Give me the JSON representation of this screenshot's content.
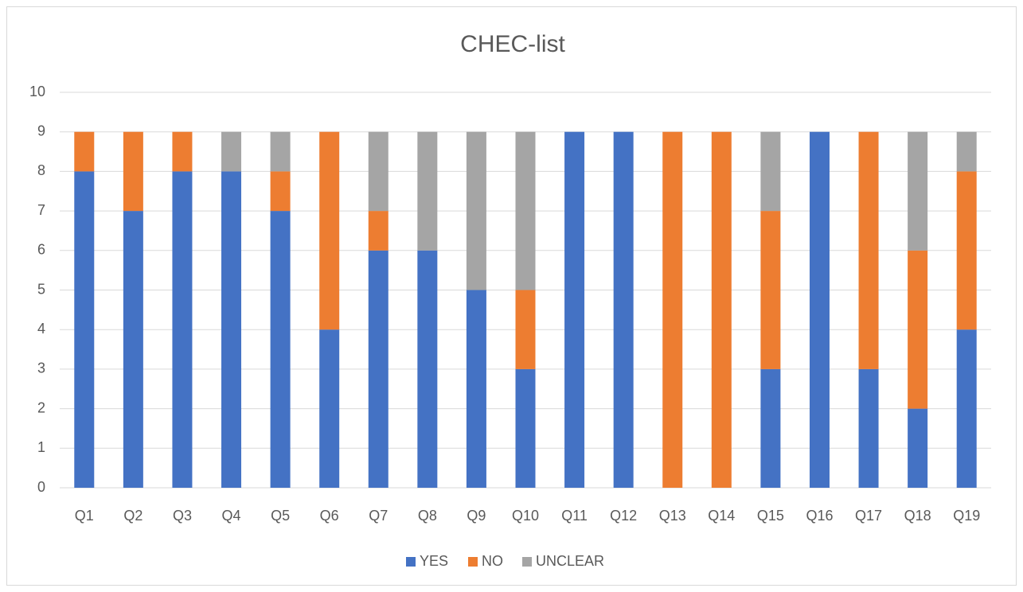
{
  "chart_data": {
    "type": "stacked_bar",
    "title": "CHEC-list",
    "categories": [
      "Q1",
      "Q2",
      "Q3",
      "Q4",
      "Q5",
      "Q6",
      "Q7",
      "Q8",
      "Q9",
      "Q10",
      "Q11",
      "Q12",
      "Q13",
      "Q14",
      "Q15",
      "Q16",
      "Q17",
      "Q18",
      "Q19"
    ],
    "series": [
      {
        "name": "YES",
        "color": "#4472c4",
        "values": [
          8,
          7,
          8,
          8,
          7,
          4,
          6,
          6,
          5,
          3,
          9,
          9,
          0,
          0,
          3,
          9,
          3,
          2,
          4
        ]
      },
      {
        "name": "NO",
        "color": "#ed7d31",
        "values": [
          1,
          2,
          1,
          0,
          1,
          5,
          1,
          0,
          0,
          2,
          0,
          0,
          9,
          9,
          4,
          0,
          6,
          4,
          4
        ]
      },
      {
        "name": "UNCLEAR",
        "color": "#a5a5a5",
        "values": [
          0,
          0,
          0,
          1,
          1,
          0,
          2,
          3,
          4,
          4,
          0,
          0,
          0,
          0,
          2,
          0,
          0,
          3,
          1
        ]
      }
    ],
    "ylim": [
      0,
      10
    ],
    "yticks": [
      0,
      1,
      2,
      3,
      4,
      5,
      6,
      7,
      8,
      9,
      10
    ],
    "grid": true,
    "legend": "bottom"
  }
}
